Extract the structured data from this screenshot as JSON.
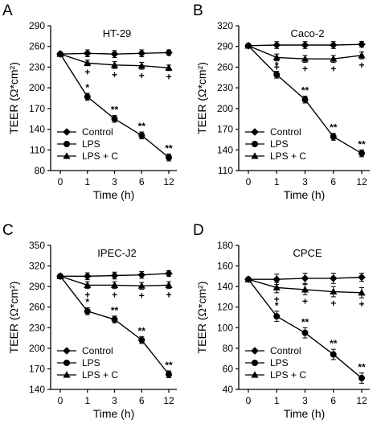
{
  "chart_data": [
    {
      "type": "line",
      "panel_label": "A",
      "title": "HT-29",
      "xlabel": "Time (h)",
      "ylabel": "TEER (Ω*cm²)",
      "categories": [
        "0",
        "1",
        "3",
        "6",
        "12"
      ],
      "yticks": [
        "80",
        "110",
        "140",
        "170",
        "200",
        "230",
        "260",
        "290"
      ],
      "ylim": [
        80,
        290
      ],
      "grid": false,
      "legend_position": "bottom-left",
      "series": [
        {
          "name": "Control",
          "marker": "diamond",
          "values": [
            249,
            250,
            249,
            250,
            251
          ],
          "errors": [
            2,
            5,
            5,
            5,
            4
          ]
        },
        {
          "name": "LPS",
          "marker": "circle",
          "values": [
            249,
            187,
            155,
            131,
            99
          ],
          "errors": [
            2,
            5,
            5,
            5,
            5
          ]
        },
        {
          "name": "LPS + C",
          "marker": "triangle",
          "values": [
            249,
            236,
            233,
            232,
            229
          ],
          "errors": [
            2,
            4,
            5,
            5,
            4
          ]
        }
      ],
      "annotations": [
        {
          "series": "LPS",
          "marks": [
            "*",
            "**",
            "**",
            "**"
          ]
        },
        {
          "series": "LPS + C",
          "marks": [
            "+",
            "+",
            "+",
            "+"
          ]
        }
      ]
    },
    {
      "type": "line",
      "panel_label": "B",
      "title": "Caco-2",
      "xlabel": "Time (h)",
      "ylabel": "TEER (Ω*cm²)",
      "categories": [
        "0",
        "1",
        "3",
        "6",
        "12"
      ],
      "yticks": [
        "110",
        "140",
        "170",
        "200",
        "230",
        "260",
        "290",
        "320"
      ],
      "ylim": [
        110,
        320
      ],
      "grid": false,
      "legend_position": "bottom-left",
      "series": [
        {
          "name": "Control",
          "marker": "diamond",
          "values": [
            291,
            292,
            292,
            292,
            293
          ],
          "errors": [
            2,
            5,
            5,
            5,
            4
          ]
        },
        {
          "name": "LPS",
          "marker": "circle",
          "values": [
            291,
            249,
            213,
            159,
            135
          ],
          "errors": [
            2,
            5,
            5,
            5,
            5
          ]
        },
        {
          "name": "LPS + C",
          "marker": "triangle",
          "values": [
            291,
            274,
            272,
            272,
            277
          ],
          "errors": [
            2,
            5,
            5,
            5,
            5
          ]
        }
      ],
      "annotations": [
        {
          "series": "LPS",
          "marks": [
            "*",
            "**",
            "**",
            "**"
          ]
        },
        {
          "series": "LPS + C",
          "marks": [
            "+",
            "+",
            "+",
            "+"
          ]
        }
      ]
    },
    {
      "type": "line",
      "panel_label": "C",
      "title": "IPEC-J2",
      "xlabel": "Time (h)",
      "ylabel": "TEER (Ω*cm²)",
      "categories": [
        "0",
        "1",
        "3",
        "6",
        "12"
      ],
      "yticks": [
        "140",
        "170",
        "200",
        "230",
        "260",
        "290",
        "320",
        "350"
      ],
      "ylim": [
        140,
        350
      ],
      "grid": false,
      "legend_position": "bottom-left",
      "series": [
        {
          "name": "Control",
          "marker": "diamond",
          "values": [
            305,
            305,
            306,
            307,
            309
          ],
          "errors": [
            2,
            5,
            5,
            5,
            4
          ]
        },
        {
          "name": "LPS",
          "marker": "circle",
          "values": [
            305,
            254,
            242,
            212,
            162
          ],
          "errors": [
            2,
            5,
            5,
            5,
            5
          ]
        },
        {
          "name": "LPS + C",
          "marker": "triangle",
          "values": [
            305,
            292,
            292,
            291,
            292
          ],
          "errors": [
            2,
            5,
            5,
            5,
            5
          ]
        }
      ],
      "annotations": [
        {
          "series": "LPS",
          "marks": [
            "*",
            "**",
            "**",
            "**"
          ]
        },
        {
          "series": "LPS + C",
          "marks": [
            "+",
            "+",
            "+",
            "+"
          ]
        }
      ]
    },
    {
      "type": "line",
      "panel_label": "D",
      "title": "CPCE",
      "xlabel": "Time (h)",
      "ylabel": "TEER (Ω*cm²)",
      "categories": [
        "0",
        "1",
        "3",
        "6",
        "12"
      ],
      "yticks": [
        "40",
        "60",
        "80",
        "100",
        "120",
        "140",
        "160",
        "180"
      ],
      "ylim": [
        40,
        180
      ],
      "grid": false,
      "legend_position": "bottom-left",
      "series": [
        {
          "name": "Control",
          "marker": "diamond",
          "values": [
            147,
            147,
            148,
            148,
            149
          ],
          "errors": [
            2,
            5,
            5,
            5,
            4
          ]
        },
        {
          "name": "LPS",
          "marker": "circle",
          "values": [
            147,
            111,
            95,
            74,
            51
          ],
          "errors": [
            2,
            5,
            5,
            5,
            5
          ]
        },
        {
          "name": "LPS + C",
          "marker": "triangle",
          "values": [
            147,
            139,
            137,
            135,
            134
          ],
          "errors": [
            2,
            5,
            5,
            5,
            5
          ]
        }
      ],
      "annotations": [
        {
          "series": "LPS",
          "marks": [
            "*",
            "**",
            "**",
            "**"
          ]
        },
        {
          "series": "LPS + C",
          "marks": [
            "+",
            "+",
            "+",
            "+"
          ]
        }
      ]
    }
  ]
}
